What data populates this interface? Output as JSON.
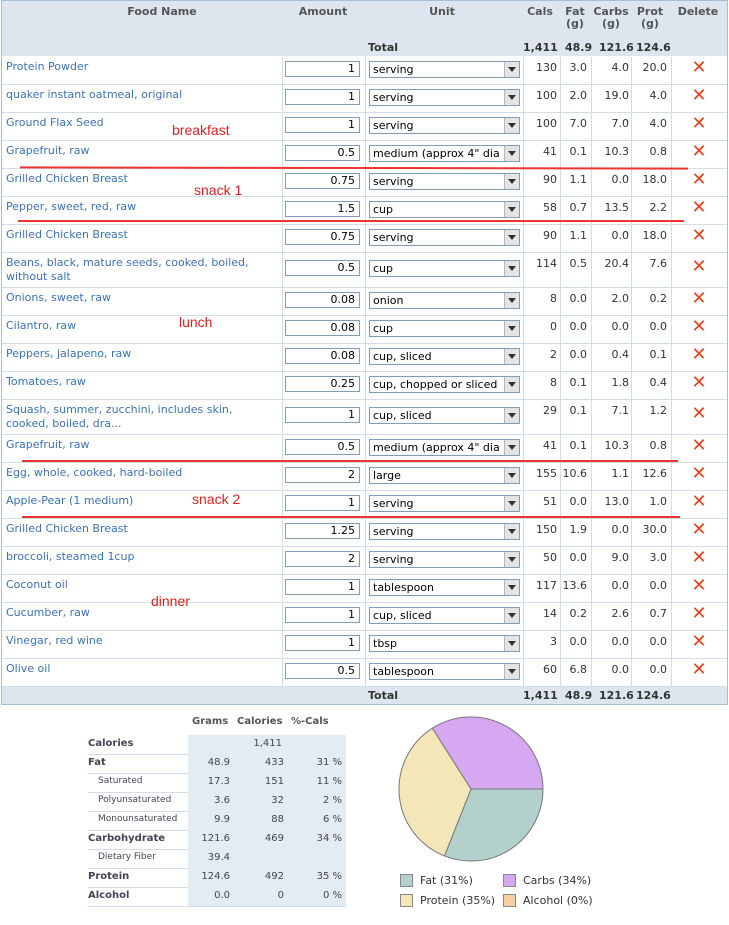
{
  "header": {
    "food_name": "Food Name",
    "amount": "Amount",
    "unit": "Unit",
    "cals": "Cals",
    "fat_l1": "Fat",
    "fat_l2": "(g)",
    "carbs_l1": "Carbs",
    "carbs_l2": "(g)",
    "prot_l1": "Prot",
    "prot_l2": "(g)",
    "delete": "Delete"
  },
  "totals": {
    "label": "Total",
    "cals": "1,411",
    "fat": "48.9",
    "carbs": "121.6",
    "prot": "124.6"
  },
  "foods": [
    {
      "name": "Protein Powder",
      "amount": "1",
      "unit": "serving",
      "cals": "130",
      "fat": "3.0",
      "carbs": "4.0",
      "prot": "20.0"
    },
    {
      "name": "quaker instant oatmeal, original",
      "amount": "1",
      "unit": "serving",
      "cals": "100",
      "fat": "2.0",
      "carbs": "19.0",
      "prot": "4.0"
    },
    {
      "name": "Ground Flax Seed",
      "amount": "1",
      "unit": "serving",
      "cals": "100",
      "fat": "7.0",
      "carbs": "7.0",
      "prot": "4.0"
    },
    {
      "name": "Grapefruit, raw",
      "amount": "0.5",
      "unit": "medium (approx 4\" dia",
      "cals": "41",
      "fat": "0.1",
      "carbs": "10.3",
      "prot": "0.8"
    },
    {
      "name": "Grilled Chicken Breast",
      "amount": "0.75",
      "unit": "serving",
      "cals": "90",
      "fat": "1.1",
      "carbs": "0.0",
      "prot": "18.0"
    },
    {
      "name": "Pepper, sweet, red, raw",
      "amount": "1.5",
      "unit": "cup",
      "cals": "58",
      "fat": "0.7",
      "carbs": "13.5",
      "prot": "2.2"
    },
    {
      "name": "Grilled Chicken Breast",
      "amount": "0.75",
      "unit": "serving",
      "cals": "90",
      "fat": "1.1",
      "carbs": "0.0",
      "prot": "18.0"
    },
    {
      "name": "Beans, black, mature seeds, cooked, boiled, without salt",
      "amount": "0.5",
      "unit": "cup",
      "cals": "114",
      "fat": "0.5",
      "carbs": "20.4",
      "prot": "7.6"
    },
    {
      "name": "Onions, sweet, raw",
      "amount": "0.08",
      "unit": "onion",
      "cals": "8",
      "fat": "0.0",
      "carbs": "2.0",
      "prot": "0.2"
    },
    {
      "name": "Cilantro, raw",
      "amount": "0.08",
      "unit": "cup",
      "cals": "0",
      "fat": "0.0",
      "carbs": "0.0",
      "prot": "0.0"
    },
    {
      "name": "Peppers, jalapeno, raw",
      "amount": "0.08",
      "unit": "cup, sliced",
      "cals": "2",
      "fat": "0.0",
      "carbs": "0.4",
      "prot": "0.1"
    },
    {
      "name": "Tomatoes, raw",
      "amount": "0.25",
      "unit": "cup, chopped or sliced",
      "cals": "8",
      "fat": "0.1",
      "carbs": "1.8",
      "prot": "0.4"
    },
    {
      "name": "Squash, summer, zucchini, includes skin, cooked, boiled, dra...",
      "amount": "1",
      "unit": "cup, sliced",
      "cals": "29",
      "fat": "0.1",
      "carbs": "7.1",
      "prot": "1.2"
    },
    {
      "name": "Grapefruit, raw",
      "amount": "0.5",
      "unit": "medium (approx 4\" dia",
      "cals": "41",
      "fat": "0.1",
      "carbs": "10.3",
      "prot": "0.8"
    },
    {
      "name": "Egg, whole, cooked, hard-boiled",
      "amount": "2",
      "unit": "large",
      "cals": "155",
      "fat": "10.6",
      "carbs": "1.1",
      "prot": "12.6"
    },
    {
      "name": "Apple-Pear (1 medium)",
      "amount": "1",
      "unit": "serving",
      "cals": "51",
      "fat": "0.0",
      "carbs": "13.0",
      "prot": "1.0"
    },
    {
      "name": "Grilled Chicken Breast",
      "amount": "1.25",
      "unit": "serving",
      "cals": "150",
      "fat": "1.9",
      "carbs": "0.0",
      "prot": "30.0"
    },
    {
      "name": "broccoli, steamed 1cup",
      "amount": "2",
      "unit": "serving",
      "cals": "50",
      "fat": "0.0",
      "carbs": "9.0",
      "prot": "3.0"
    },
    {
      "name": "Coconut oil",
      "amount": "1",
      "unit": "tablespoon",
      "cals": "117",
      "fat": "13.6",
      "carbs": "0.0",
      "prot": "0.0"
    },
    {
      "name": "Cucumber, raw",
      "amount": "1",
      "unit": "cup, sliced",
      "cals": "14",
      "fat": "0.2",
      "carbs": "2.6",
      "prot": "0.7"
    },
    {
      "name": "Vinegar, red wine",
      "amount": "1",
      "unit": "tbsp",
      "cals": "3",
      "fat": "0.0",
      "carbs": "0.0",
      "prot": "0.0"
    },
    {
      "name": "Olive oil",
      "amount": "0.5",
      "unit": "tablespoon",
      "cals": "60",
      "fat": "6.8",
      "carbs": "0.0",
      "prot": "0.0"
    }
  ],
  "annotations": {
    "breakfast": "breakfast",
    "snack1": "snack 1",
    "lunch": "lunch",
    "snack2": "snack 2",
    "dinner": "dinner"
  },
  "colors": {
    "fat": "#b3d0cd",
    "carbs": "#d7a8f2",
    "protein": "#f5e6b9",
    "alcohol": "#f7cfa4",
    "delete": "#e8431c",
    "link": "#3b73b3"
  },
  "summary": {
    "headers": {
      "grams": "Grams",
      "calories": "Calories",
      "pct": "%-Cals"
    },
    "rows": [
      {
        "label": "Calories",
        "sub": false,
        "grams": "",
        "cals": "1,411",
        "pct": ""
      },
      {
        "label": "Fat",
        "sub": false,
        "grams": "48.9",
        "cals": "433",
        "pct": "31 %"
      },
      {
        "label": "Saturated",
        "sub": true,
        "grams": "17.3",
        "cals": "151",
        "pct": "11 %"
      },
      {
        "label": "Polyunsaturated",
        "sub": true,
        "grams": "3.6",
        "cals": "32",
        "pct": "2 %"
      },
      {
        "label": "Monounsaturated",
        "sub": true,
        "grams": "9.9",
        "cals": "88",
        "pct": "6 %"
      },
      {
        "label": "Carbohydrate",
        "sub": false,
        "grams": "121.6",
        "cals": "469",
        "pct": "34 %"
      },
      {
        "label": "Dietary Fiber",
        "sub": true,
        "grams": "39.4",
        "cals": "",
        "pct": ""
      },
      {
        "label": "Protein",
        "sub": false,
        "grams": "124.6",
        "cals": "492",
        "pct": "35 %"
      },
      {
        "label": "Alcohol",
        "sub": false,
        "grams": "0.0",
        "cals": "0",
        "pct": "0 %"
      }
    ]
  },
  "pie": {
    "slices": [
      {
        "key": "fat",
        "pct": 31
      },
      {
        "key": "protein",
        "pct": 35
      },
      {
        "key": "carbs",
        "pct": 34
      },
      {
        "key": "alcohol",
        "pct": 0
      }
    ],
    "legend": {
      "fat": "Fat (31%)",
      "carbs": "Carbs (34%)",
      "protein": "Protein (35%)",
      "alcohol": "Alcohol (0%)"
    }
  }
}
